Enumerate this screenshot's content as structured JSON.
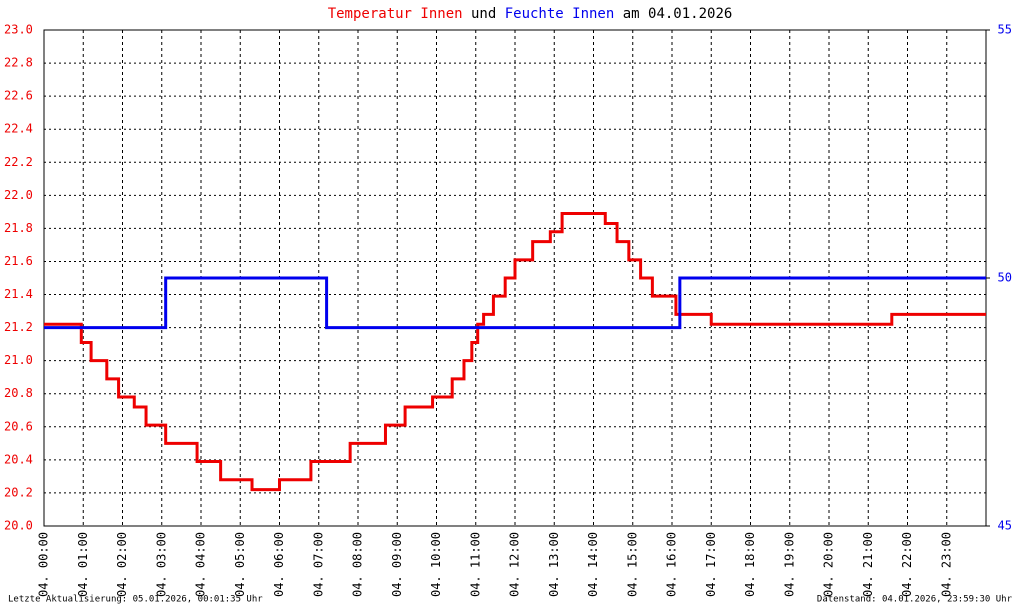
{
  "chart_data": {
    "type": "line",
    "title_parts": [
      "Temperatur Innen",
      "und",
      "Feuchte Innen",
      "am 04.01.2026"
    ],
    "footer_left": "Letzte Aktualisierung: 05.01.2026, 00:01:35 Uhr",
    "footer_right": "Datenstand: 04.01.2026, 23:59:30 Uhr",
    "grid": true,
    "xlim": [
      0,
      24
    ],
    "xticks": [
      {
        "value": 0,
        "label": "04. 00:00"
      },
      {
        "value": 1,
        "label": "04. 01:00"
      },
      {
        "value": 2,
        "label": "04. 02:00"
      },
      {
        "value": 3,
        "label": "04. 03:00"
      },
      {
        "value": 4,
        "label": "04. 04:00"
      },
      {
        "value": 5,
        "label": "04. 05:00"
      },
      {
        "value": 6,
        "label": "04. 06:00"
      },
      {
        "value": 7,
        "label": "04. 07:00"
      },
      {
        "value": 8,
        "label": "04. 08:00"
      },
      {
        "value": 9,
        "label": "04. 09:00"
      },
      {
        "value": 10,
        "label": "04. 10:00"
      },
      {
        "value": 11,
        "label": "04. 11:00"
      },
      {
        "value": 12,
        "label": "04. 12:00"
      },
      {
        "value": 13,
        "label": "04. 13:00"
      },
      {
        "value": 14,
        "label": "04. 14:00"
      },
      {
        "value": 15,
        "label": "04. 15:00"
      },
      {
        "value": 16,
        "label": "04. 16:00"
      },
      {
        "value": 17,
        "label": "04. 17:00"
      },
      {
        "value": 18,
        "label": "04. 18:00"
      },
      {
        "value": 19,
        "label": "04. 19:00"
      },
      {
        "value": 20,
        "label": "04. 20:00"
      },
      {
        "value": 21,
        "label": "04. 21:00"
      },
      {
        "value": 22,
        "label": "04. 22:00"
      },
      {
        "value": 23,
        "label": "04. 23:00"
      }
    ],
    "ylim": [
      20,
      23
    ],
    "yticks": [
      {
        "value": 20,
        "label": "20.0"
      },
      {
        "value": 20.2,
        "label": "20.2"
      },
      {
        "value": 20.4,
        "label": "20.4"
      },
      {
        "value": 20.6,
        "label": "20.6"
      },
      {
        "value": 20.8,
        "label": "20.8"
      },
      {
        "value": 21,
        "label": "21.0"
      },
      {
        "value": 21.2,
        "label": "21.2"
      },
      {
        "value": 21.4,
        "label": "21.4"
      },
      {
        "value": 21.6,
        "label": "21.6"
      },
      {
        "value": 21.8,
        "label": "21.8"
      },
      {
        "value": 22,
        "label": "22.0"
      },
      {
        "value": 22.2,
        "label": "22.2"
      },
      {
        "value": 22.4,
        "label": "22.4"
      },
      {
        "value": 22.6,
        "label": "22.6"
      },
      {
        "value": 22.8,
        "label": "22.8"
      },
      {
        "value": 23,
        "label": "23.0"
      }
    ],
    "y2lim": [
      45,
      55
    ],
    "y2ticks": [
      45,
      50,
      55
    ],
    "series": [
      {
        "name": "Temperatur Innen",
        "color": "#ee0000",
        "x": [
          0,
          0.95,
          0.95,
          1.2,
          1.2,
          1.6,
          1.6,
          1.9,
          1.9,
          2.3,
          2.3,
          2.6,
          2.6,
          3.1,
          3.1,
          3.9,
          3.9,
          4.5,
          4.5,
          5.3,
          5.3,
          6.0,
          6.0,
          6.8,
          6.8,
          7.8,
          7.8,
          8.7,
          8.7,
          9.2,
          9.2,
          9.9,
          9.9,
          10.4,
          10.4,
          10.7,
          10.7,
          10.9,
          10.9,
          11.05,
          11.05,
          11.2,
          11.2,
          11.45,
          11.45,
          11.75,
          11.75,
          12.0,
          12.0,
          12.45,
          12.45,
          12.9,
          12.9,
          13.2,
          13.2,
          14.3,
          14.3,
          14.6,
          14.6,
          14.9,
          14.9,
          15.2,
          15.2,
          15.5,
          15.5,
          16.1,
          16.1,
          17.0,
          17.0,
          21.6,
          21.6,
          24
        ],
        "values": [
          21.22,
          21.22,
          21.11,
          21.11,
          21.0,
          21.0,
          20.89,
          20.89,
          20.78,
          20.78,
          20.72,
          20.72,
          20.61,
          20.61,
          20.5,
          20.5,
          20.39,
          20.39,
          20.28,
          20.28,
          20.22,
          20.22,
          20.28,
          20.28,
          20.39,
          20.39,
          20.5,
          20.5,
          20.61,
          20.61,
          20.72,
          20.72,
          20.78,
          20.78,
          20.89,
          20.89,
          21.0,
          21.0,
          21.11,
          21.11,
          21.22,
          21.22,
          21.28,
          21.28,
          21.39,
          21.39,
          21.5,
          21.5,
          21.61,
          21.61,
          21.72,
          21.72,
          21.78,
          21.78,
          21.89,
          21.89,
          21.83,
          21.83,
          21.72,
          21.72,
          21.61,
          21.61,
          21.5,
          21.5,
          21.39,
          21.39,
          21.28,
          21.28,
          21.22,
          21.22,
          21.28,
          21.28
        ]
      },
      {
        "name": "Feuchte Innen",
        "color": "#0000ee",
        "axis": "y2",
        "x": [
          0,
          3.1,
          3.1,
          7.2,
          7.2,
          16.2,
          16.2,
          24
        ],
        "values": [
          49,
          49,
          50,
          50,
          49,
          49,
          50,
          50
        ]
      }
    ]
  }
}
